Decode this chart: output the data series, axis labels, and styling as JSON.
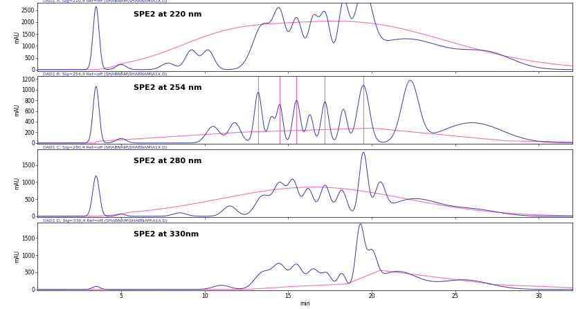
{
  "panels": [
    {
      "label": "DAD1 A, Sig=220,4 Ref=off (SHABNAM\\SHABNAM\\A1X.D)",
      "title": "SPE2 at 220 nm",
      "ylim": [
        -50,
        2800
      ],
      "yticks": [
        0,
        500,
        1000,
        1500,
        2000,
        2500
      ],
      "ylabel": "mAU",
      "baseline_color": "#FF69B4",
      "signal_color": "#3333BB"
    },
    {
      "label": "DAD1 B, Sig=254,4 Ref=off (SHABNAM\\SHABNAM\\A1X.D)",
      "title": "SPE2 at 254 nm",
      "ylim": [
        -20,
        1250
      ],
      "yticks": [
        0,
        200,
        400,
        600,
        800,
        1000,
        1200
      ],
      "ylabel": "mAU",
      "baseline_color": "#FF69B4",
      "signal_color": "#3333BB",
      "fraction_lines": [
        13.2,
        14.5,
        15.5,
        17.2,
        19.5
      ]
    },
    {
      "label": "DAD1 C, Sig=280,4 Ref=off (SHABNAM\\SHABNAM\\A1X.D)",
      "title": "SPE2 at 280 nm",
      "ylim": [
        -30,
        1950
      ],
      "yticks": [
        0,
        500,
        1000,
        1500
      ],
      "ylabel": "mAU",
      "baseline_color": "#FF69B4",
      "signal_color": "#3333BB"
    },
    {
      "label": "DAD1 D, Sig=330,4 Ref=off (SHABNAM\\SHABNAM\\A1X.D)",
      "title": "SPE2 at 330nm",
      "ylim": [
        -30,
        1950
      ],
      "yticks": [
        0,
        500,
        1000,
        1500
      ],
      "ylabel": "mAU",
      "baseline_color": "#FF69B4",
      "signal_color": "#3333BB"
    }
  ],
  "xlim": [
    0,
    32
  ],
  "xticks": [
    5,
    10,
    15,
    20,
    25,
    30
  ],
  "xlabel": "min",
  "bg_color": "#FFFFFF",
  "panel_bg": "#FFFFFF",
  "header_color": "#2222AA",
  "title_fontsize": 8,
  "label_fontsize": 5.5,
  "tick_fontsize": 5.5,
  "header_fontsize": 4.5
}
